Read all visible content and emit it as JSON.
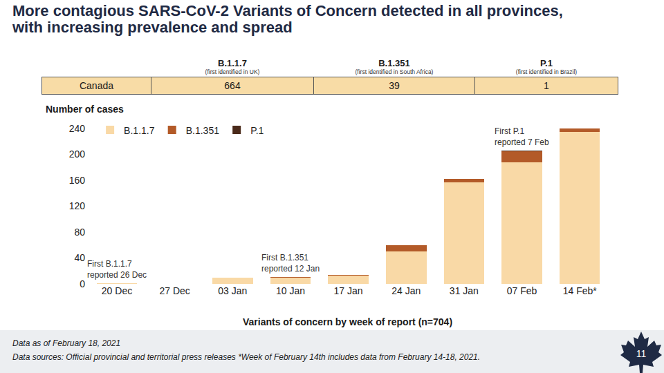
{
  "title_lines": [
    "More contagious SARS-CoV-2 Variants of Concern detected in all provinces,",
    "with increasing prevalence and spread"
  ],
  "summary_table": {
    "columns": [
      {
        "name": "B.1.1.7",
        "note": "(first identified in UK)"
      },
      {
        "name": "B.1.351",
        "note": "(first identified in South Africa)"
      },
      {
        "name": "P.1",
        "note": "(first identified in Brazil)"
      }
    ],
    "rows": [
      [
        "Canada",
        664,
        39,
        1
      ]
    ]
  },
  "chart_data": {
    "type": "bar",
    "stacked": true,
    "ylabel": "Number of cases",
    "xlabel": "Variants of concern by week of report (n=704)",
    "categories": [
      "20 Dec",
      "27 Dec",
      "03 Jan",
      "10 Jan",
      "17 Jan",
      "24 Jan",
      "31 Jan",
      "07 Feb",
      "14 Feb*"
    ],
    "series": [
      {
        "name": "B.1.1.7",
        "color": "#f9d9a6",
        "values": [
          1,
          0,
          10,
          10,
          13,
          50,
          157,
          188,
          235
        ]
      },
      {
        "name": "B.1.351",
        "color": "#b35a28",
        "values": [
          0,
          0,
          0,
          1,
          1,
          10,
          5,
          17,
          5
        ]
      },
      {
        "name": "P.1",
        "color": "#4a2a1a",
        "values": [
          0,
          0,
          0,
          0,
          0,
          0,
          0,
          1,
          0
        ]
      }
    ],
    "ylim": [
      0,
      240
    ],
    "yticks": [
      0,
      40,
      80,
      120,
      160,
      200,
      240
    ],
    "grid": false,
    "legend": "top left",
    "annotations": [
      {
        "text": "First B.1.1.7\nreported 26 Dec",
        "category": "20 Dec"
      },
      {
        "text": "First B.1.351\nreported 12 Jan",
        "category": "10 Jan"
      },
      {
        "text": "First P.1\nreported 7 Feb",
        "category": "07 Feb"
      }
    ]
  },
  "footer_lines": [
    "Data as of February 18, 2021",
    "Data sources: Official provincial and territorial press releases *Week of February 14th includes data from February 14-18, 2021."
  ],
  "page_number": 11
}
